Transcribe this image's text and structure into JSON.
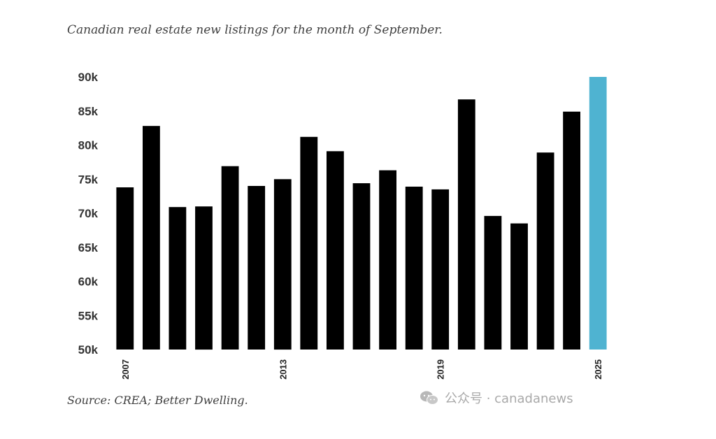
{
  "chart_data": {
    "type": "bar",
    "title": "Canadian real estate new listings for the month of September.",
    "source": "Source: CREA; Better Dwelling.",
    "xlabel": "",
    "ylabel": "",
    "ylim": [
      50000,
      90000
    ],
    "yticks": [
      {
        "value": 50000,
        "label": "50k"
      },
      {
        "value": 55000,
        "label": "55k"
      },
      {
        "value": 60000,
        "label": "60k"
      },
      {
        "value": 65000,
        "label": "65k"
      },
      {
        "value": 70000,
        "label": "70k"
      },
      {
        "value": 75000,
        "label": "75k"
      },
      {
        "value": 80000,
        "label": "80k"
      },
      {
        "value": 85000,
        "label": "85k"
      },
      {
        "value": 90000,
        "label": "90k"
      }
    ],
    "categories": [
      "2007",
      "2008",
      "2009",
      "2010",
      "2011",
      "2012",
      "2013",
      "2014",
      "2015",
      "2016",
      "2017",
      "2018",
      "2019",
      "2020",
      "2021",
      "2022",
      "2023",
      "2024",
      "2025"
    ],
    "xtick_labels": [
      "2007",
      "2013",
      "2019",
      "2025"
    ],
    "values": [
      73800,
      82800,
      70900,
      71000,
      76900,
      74000,
      75000,
      81200,
      79100,
      74400,
      76300,
      73900,
      73500,
      86700,
      69600,
      68500,
      78900,
      84900,
      90000
    ],
    "bar_color": "#000000",
    "highlight_color": "#4fb3d1",
    "highlight_category": "2025"
  },
  "watermark": {
    "icon": "wechat-icon",
    "text": "公众号 · canadanews"
  }
}
